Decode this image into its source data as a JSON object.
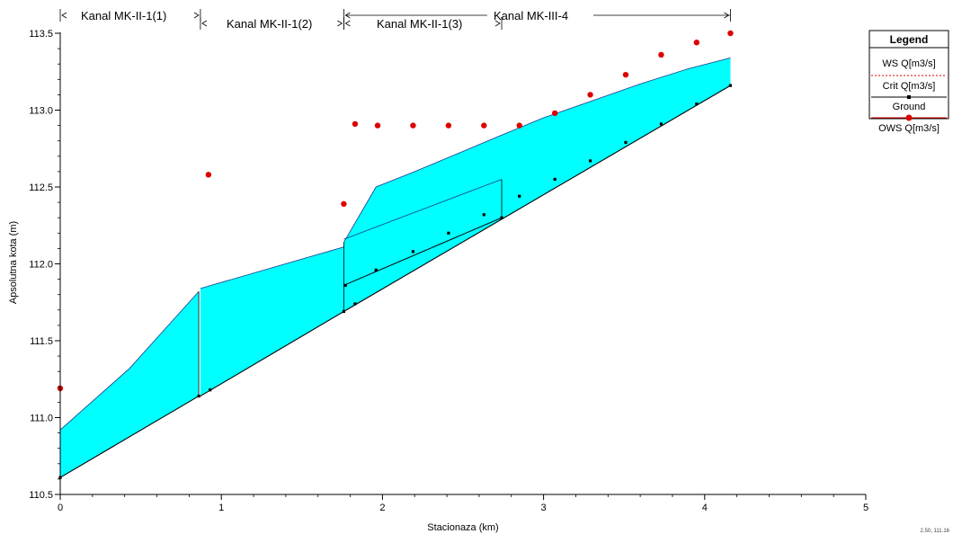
{
  "chart_data": {
    "type": "area",
    "title": "",
    "xlabel": "Stacionaza (km)",
    "ylabel": "Apsolutna kota (m)",
    "xlim": [
      0,
      5
    ],
    "ylim": [
      110.5,
      113.5
    ],
    "x_ticks": [
      "0",
      "1",
      "2",
      "3",
      "4",
      "5"
    ],
    "y_ticks": [
      "110.5",
      "111.0",
      "111.5",
      "112.0",
      "112.5",
      "113.0",
      "113.5"
    ],
    "grid": false,
    "legend_position": "right",
    "legend": {
      "title": "Legend",
      "entries": [
        "WS  Q[m3/s]",
        "Crit  Q[m3/s]",
        "Ground",
        "OWS  Q[m3/s]"
      ]
    },
    "reaches": [
      {
        "label": "Kanal MK-II-1(1)",
        "x_start": 0.0,
        "x_end": 0.87
      },
      {
        "label": "Kanal MK-II-1(2)",
        "x_start": 0.87,
        "x_end": 1.76
      },
      {
        "label": "Kanal MK-II-1(3)",
        "x_start": 1.76,
        "x_end": 2.74
      },
      {
        "label": "Kanal MK-III-4",
        "x_start": 1.76,
        "x_end": 4.16
      }
    ],
    "colors": {
      "water": "#00ffff",
      "ground": "#000000",
      "ows": "#dd0000",
      "crit": "#000000"
    },
    "series": [
      {
        "name": "WS  Q[m3/s]",
        "segments": [
          {
            "x": [
              0.0,
              0.43,
              0.86
            ],
            "y": [
              110.92,
              111.32,
              111.82
            ]
          },
          {
            "x": [
              0.87,
              1.76
            ],
            "y": [
              111.84,
              112.11
            ]
          },
          {
            "x": [
              1.76,
              1.96,
              2.2,
              2.45,
              2.7,
              3.0,
              3.3,
              3.6,
              3.9,
              4.16
            ],
            "y": [
              112.14,
              112.5,
              112.6,
              112.71,
              112.82,
              112.95,
              113.06,
              113.17,
              113.27,
              113.34
            ]
          }
        ]
      },
      {
        "name": "Ground",
        "segments": [
          {
            "x": [
              0.0,
              0.86
            ],
            "y": [
              110.61,
              111.14
            ]
          },
          {
            "x": [
              0.87,
              1.76
            ],
            "y": [
              111.14,
              111.69
            ]
          },
          {
            "x": [
              1.76,
              4.16
            ],
            "y": [
              111.69,
              113.16
            ]
          }
        ]
      },
      {
        "name": "Ground (Kanal MK-II-1(3))",
        "segments": [
          {
            "x": [
              1.76,
              2.74
            ],
            "y": [
              111.86,
              112.3
            ]
          }
        ]
      },
      {
        "name": "Crit  Q[m3/s]",
        "x": [
          0.0,
          0.86,
          0.93,
          1.76,
          1.77,
          1.83,
          1.96,
          2.19,
          2.41,
          2.63,
          2.74,
          2.85,
          3.07,
          3.29,
          3.51,
          3.73,
          3.95,
          4.16
        ],
        "y": [
          110.61,
          111.14,
          111.18,
          111.69,
          111.86,
          111.74,
          111.96,
          112.08,
          112.2,
          112.32,
          112.3,
          112.44,
          112.55,
          112.67,
          112.79,
          112.91,
          113.04,
          113.16
        ]
      },
      {
        "name": "OWS  Q[m3/s]",
        "x": [
          0.0,
          0.92,
          1.76,
          1.83,
          1.97,
          2.19,
          2.41,
          2.63,
          2.85,
          3.07,
          3.29,
          3.51,
          3.73,
          3.95,
          4.16
        ],
        "y": [
          111.19,
          112.58,
          112.39,
          112.91,
          112.9,
          112.9,
          112.9,
          112.9,
          112.9,
          112.98,
          113.1,
          113.23,
          113.36,
          113.44,
          113.5
        ]
      }
    ],
    "corner_label": "2.50, 111.16"
  }
}
